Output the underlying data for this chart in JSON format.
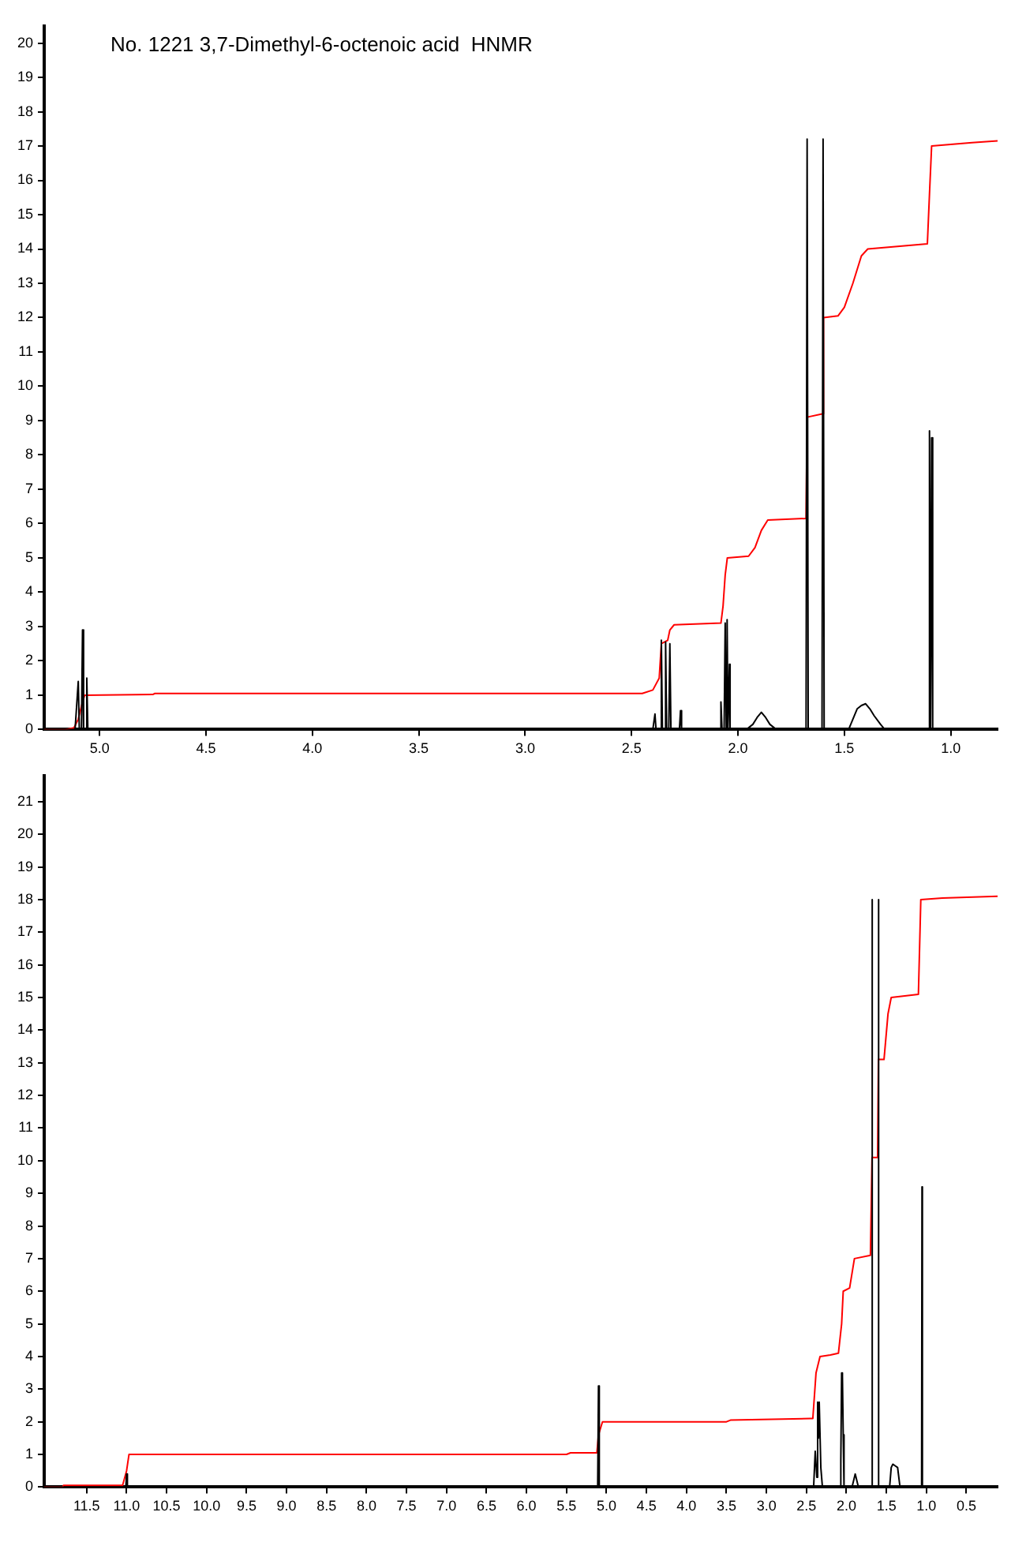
{
  "chart_data": [
    {
      "type": "line",
      "title": "No. 1221 3,7-Dimethyl-6-octenoic acid  HNMR",
      "xlim": [
        5.26,
        0.78
      ],
      "ylim": [
        0,
        20.5
      ],
      "xticks": [
        {
          "value": 5,
          "label": "5.0"
        },
        4.5,
        {
          "value": 4,
          "label": "4.0"
        },
        3.5,
        {
          "value": 3,
          "label": "3.0"
        },
        2.5,
        {
          "value": 2,
          "label": "2.0"
        },
        1.5,
        {
          "value": 1,
          "label": "1.0"
        }
      ],
      "yticks": [
        0,
        1,
        2,
        3,
        4,
        5,
        6,
        7,
        8,
        9,
        10,
        11,
        12,
        13,
        14,
        15,
        16,
        17,
        18,
        19,
        20
      ],
      "legend": false,
      "marker": "none",
      "line_style": "solid",
      "series": [
        {
          "color": "#000000",
          "x": [
            5.26,
            5.115,
            5.1,
            5.095,
            5.085,
            5.08,
            5.075,
            5.065,
            5.06,
            5.055,
            2.4,
            2.39,
            2.385,
            2.365,
            2.36,
            2.355,
            2.345,
            2.34,
            2.335,
            2.325,
            2.32,
            2.315,
            2.275,
            2.27,
            2.265,
            2.085,
            2.08,
            2.075,
            2.065,
            2.06,
            2.055,
            2.052,
            2.05,
            2.047,
            2.043,
            2.04,
            2.037,
            1.96,
            1.93,
            1.91,
            1.89,
            1.87,
            1.85,
            1.82,
            1.68,
            1.675,
            1.67,
            1.605,
            1.6,
            1.595,
            1.48,
            1.46,
            1.44,
            1.42,
            1.4,
            1.38,
            1.36,
            1.33,
            1.31,
            1.105,
            1.1,
            1.095,
            1.092,
            1.09,
            1.085,
            0.78
          ],
          "values": [
            0,
            0,
            1.4,
            0,
            0,
            2.9,
            0,
            0,
            1.5,
            0,
            0,
            0.45,
            0,
            0,
            2.6,
            0,
            0,
            2.55,
            0,
            0,
            2.5,
            0,
            0,
            0.55,
            0,
            0,
            0.8,
            0,
            0,
            3.1,
            0,
            0,
            3.2,
            0,
            0,
            1.9,
            0,
            0,
            0.15,
            0.35,
            0.5,
            0.35,
            0.15,
            0,
            0,
            17.2,
            0,
            0,
            17.2,
            0,
            0,
            0.3,
            0.6,
            0.7,
            0.75,
            0.6,
            0.4,
            0.15,
            0,
            0,
            8.7,
            0,
            0,
            8.5,
            0,
            0
          ]
        },
        {
          "color": "#ff0000",
          "x": [
            5.26,
            5.16,
            5.12,
            5.1,
            5.08,
            5.07,
            4.75,
            4.74,
            2.45,
            2.4,
            2.37,
            2.36,
            2.33,
            2.32,
            2.3,
            2.08,
            2.07,
            2.06,
            2.05,
            1.95,
            1.92,
            1.89,
            1.86,
            1.68,
            1.675,
            1.6,
            1.598,
            1.53,
            1.5,
            1.46,
            1.42,
            1.39,
            1.11,
            1.1,
            1.09,
            0.9,
            0.78
          ],
          "values": [
            0,
            0,
            0.05,
            0.3,
            0.8,
            1.0,
            1.02,
            1.05,
            1.05,
            1.15,
            1.5,
            2.5,
            2.6,
            2.9,
            3.05,
            3.1,
            3.6,
            4.5,
            5.0,
            5.05,
            5.3,
            5.8,
            6.1,
            6.15,
            9.1,
            9.2,
            12.0,
            12.05,
            12.3,
            13.0,
            13.8,
            14.0,
            14.15,
            15.6,
            17.0,
            17.1,
            17.15
          ]
        }
      ]
    },
    {
      "type": "line",
      "xlim": [
        12.03,
        0.11
      ],
      "ylim": [
        0,
        21.8
      ],
      "xticks": [
        11.5,
        {
          "value": 11,
          "label": "11.0"
        },
        10.5,
        {
          "value": 10,
          "label": "10.0"
        },
        9.5,
        {
          "value": 9,
          "label": "9.0"
        },
        8.5,
        {
          "value": 8,
          "label": "8.0"
        },
        7.5,
        {
          "value": 7,
          "label": "7.0"
        },
        6.5,
        {
          "value": 6,
          "label": "6.0"
        },
        5.5,
        {
          "value": 5,
          "label": "5.0"
        },
        4.5,
        {
          "value": 4,
          "label": "4.0"
        },
        3.5,
        {
          "value": 3,
          "label": "3.0"
        },
        2.5,
        {
          "value": 2,
          "label": "2.0"
        },
        1.5,
        {
          "value": 1,
          "label": "1.0"
        },
        0.5
      ],
      "yticks": [
        0,
        1,
        2,
        3,
        4,
        5,
        6,
        7,
        8,
        9,
        10,
        11,
        12,
        13,
        14,
        15,
        16,
        17,
        18,
        19,
        20,
        21
      ],
      "legend": false,
      "marker": "none",
      "line_style": "solid",
      "series": [
        {
          "color": "#000000",
          "x": [
            12.03,
            11.01,
            11.0,
            10.99,
            5.11,
            5.1,
            5.09,
            2.41,
            2.39,
            2.37,
            2.36,
            2.35,
            2.34,
            2.32,
            2.3,
            2.08,
            2.07,
            2.06,
            2.05,
            2.04,
            2.03,
            1.93,
            1.89,
            1.85,
            1.685,
            1.68,
            1.675,
            1.605,
            1.6,
            1.595,
            1.46,
            1.44,
            1.42,
            1.39,
            1.36,
            1.33,
            1.06,
            1.055,
            1.05,
            0.11
          ],
          "values": [
            0,
            0,
            0.4,
            0,
            0,
            3.1,
            0,
            0,
            1.1,
            0.3,
            2.6,
            1.5,
            2.6,
            0.6,
            0,
            0,
            0.8,
            3.5,
            3.4,
            1.6,
            0,
            0,
            0.4,
            0,
            0,
            18,
            0,
            0,
            18,
            0,
            0,
            0.6,
            0.7,
            0.65,
            0.6,
            0,
            0,
            9.2,
            0,
            0
          ]
        },
        {
          "color": "#ff0000",
          "x": [
            12.03,
            11.8,
            11.79,
            11.05,
            11.0,
            10.97,
            5.5,
            5.45,
            5.12,
            5.1,
            5.05,
            3.5,
            3.45,
            2.45,
            2.42,
            2.38,
            2.33,
            2.2,
            2.1,
            2.06,
            2.04,
            1.96,
            1.9,
            1.7,
            1.68,
            1.61,
            1.6,
            1.53,
            1.48,
            1.44,
            1.1,
            1.07,
            0.8,
            0.11
          ],
          "values": [
            0,
            0,
            0.05,
            0.05,
            0.5,
            1.0,
            1.0,
            1.05,
            1.05,
            1.6,
            2.0,
            2.0,
            2.05,
            2.1,
            2.1,
            3.5,
            4.0,
            4.05,
            4.1,
            5.0,
            6.0,
            6.1,
            7.0,
            7.1,
            10.1,
            10.1,
            13.1,
            13.1,
            14.5,
            15.0,
            15.1,
            18.0,
            18.05,
            18.1
          ]
        }
      ]
    }
  ]
}
